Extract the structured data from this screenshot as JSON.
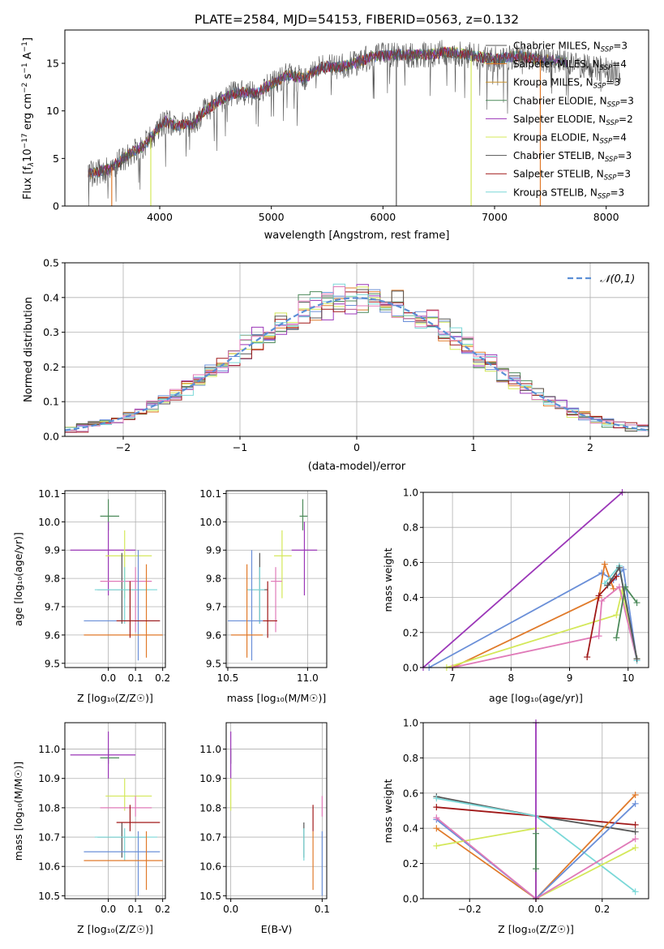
{
  "title": "PLATE=2584, MJD=54153, FIBERID=0563, z=0.132",
  "colors": {
    "chabrier_miles": "#6a8fd8",
    "salpeter_miles": "#e07a2a",
    "kroupa_miles": "#c8902a",
    "chabrier_elodie": "#4c8a5a",
    "salpeter_elodie": "#9b36b8",
    "kroupa_elodie": "#d4e85a",
    "chabrier_stelib": "#555555",
    "salpeter_stelib": "#a01818",
    "kroupa_stelib": "#7ad8d8",
    "pink": "#e07ab8",
    "normal": "#5b8fd6"
  },
  "chart_data": [
    {
      "id": "spectrum",
      "type": "line",
      "xlabel": "wavelength [Angstrom, rest frame]",
      "ylabel_parts": [
        "Flux [f",
        "λ",
        "10",
        "−17",
        " erg cm",
        "−2",
        " s",
        "−1",
        " A",
        "−1",
        "]"
      ],
      "xlim": [
        3150,
        8380
      ],
      "ylim": [
        0,
        18.5
      ],
      "xticks": [
        4000,
        5000,
        6000,
        7000,
        8000
      ],
      "yticks": [
        0,
        5,
        10,
        15
      ],
      "legend_position": "top-right",
      "legend": [
        {
          "name": "Chabrier MILES, N",
          "sub": "SSP",
          "tail": "=3",
          "color": "chabrier_stelib"
        },
        {
          "name": "Salpeter MILES, N",
          "sub": "SSP",
          "tail": "=4",
          "color": "salpeter_miles"
        },
        {
          "name": "Kroupa MILES, N",
          "sub": "SSP",
          "tail": "=3",
          "color": "kroupa_miles"
        },
        {
          "name": "Chabrier ELODIE, N",
          "sub": "SSP",
          "tail": "=3",
          "color": "chabrier_elodie"
        },
        {
          "name": "Salpeter ELODIE, N",
          "sub": "SSP",
          "tail": "=2",
          "color": "salpeter_elodie"
        },
        {
          "name": "Kroupa ELODIE, N",
          "sub": "SSP",
          "tail": "=4",
          "color": "kroupa_elodie"
        },
        {
          "name": "Chabrier STELIB, N",
          "sub": "SSP",
          "tail": "=3",
          "color": "chabrier_stelib"
        },
        {
          "name": "Salpeter STELIB, N",
          "sub": "SSP",
          "tail": "=3",
          "color": "salpeter_stelib"
        },
        {
          "name": "Kroupa STELIB, N",
          "sub": "SSP",
          "tail": "=3",
          "color": "kroupa_stelib"
        }
      ],
      "continuum": [
        [
          3400,
          3.4
        ],
        [
          3550,
          3.9
        ],
        [
          3700,
          5.2
        ],
        [
          3850,
          6.3
        ],
        [
          3950,
          7.6
        ],
        [
          4050,
          8.9
        ],
        [
          4150,
          8.4
        ],
        [
          4300,
          8.6
        ],
        [
          4400,
          10.0
        ],
        [
          4550,
          11.2
        ],
        [
          4700,
          12.0
        ],
        [
          4850,
          11.8
        ],
        [
          5000,
          12.8
        ],
        [
          5150,
          13.8
        ],
        [
          5300,
          13.4
        ],
        [
          5450,
          14.6
        ],
        [
          5600,
          14.6
        ],
        [
          5750,
          15.0
        ],
        [
          5900,
          15.7
        ],
        [
          6050,
          15.9
        ],
        [
          6200,
          15.9
        ],
        [
          6400,
          15.9
        ],
        [
          6600,
          16.2
        ],
        [
          6800,
          15.8
        ],
        [
          7000,
          15.4
        ],
        [
          7200,
          15.8
        ],
        [
          7400,
          15.4
        ],
        [
          7600,
          15.2
        ],
        [
          7800,
          14.7
        ],
        [
          8000,
          14.3
        ],
        [
          8130,
          14.0
        ]
      ],
      "drops": [
        {
          "x": 3570,
          "color": "salpeter_miles"
        },
        {
          "x": 3920,
          "color": "kroupa_elodie"
        },
        {
          "x": 6790,
          "color": "kroupa_elodie"
        },
        {
          "x": 7410,
          "color": "salpeter_miles"
        },
        {
          "x": 6120,
          "color": "chabrier_stelib"
        }
      ]
    },
    {
      "id": "residuals",
      "type": "histogram",
      "xlabel": "(data-model)/error",
      "ylabel": "Normed distribution",
      "xlim": [
        -2.5,
        2.5
      ],
      "ylim": [
        0,
        0.5
      ],
      "xticks": [
        -2,
        -1,
        0,
        1,
        2
      ],
      "yticks": [
        0.0,
        0.1,
        0.2,
        0.3,
        0.4,
        0.5
      ],
      "bin_width": 0.1,
      "grid": true,
      "legend_position": "top-right",
      "legend": [
        {
          "name": "𝒩(0,1)",
          "color": "normal",
          "style": "dashed"
        }
      ],
      "series": [
        {
          "color": "chabrier_miles",
          "seed": 1
        },
        {
          "color": "salpeter_miles",
          "seed": 2
        },
        {
          "color": "chabrier_elodie",
          "seed": 3
        },
        {
          "color": "salpeter_elodie",
          "seed": 4
        },
        {
          "color": "kroupa_elodie",
          "seed": 5
        },
        {
          "color": "chabrier_stelib",
          "seed": 6
        },
        {
          "color": "salpeter_stelib",
          "seed": 7
        },
        {
          "color": "kroupa_stelib",
          "seed": 8
        },
        {
          "color": "pink",
          "seed": 9
        }
      ]
    },
    {
      "id": "age_vs_z",
      "type": "errorbar",
      "xlabel": "Z [log10(Z/Z☉)]",
      "ylabel": "age  [log10(age/yr)]",
      "xlim": [
        -0.16,
        0.21
      ],
      "ylim": [
        9.485,
        10.11
      ],
      "xticks": [
        0.0,
        0.1,
        0.2
      ],
      "yticks": [
        9.5,
        9.6,
        9.7,
        9.8,
        9.9,
        10.0,
        10.1
      ],
      "points": [
        {
          "x": 0.0,
          "y": 10.02,
          "xerr": [
            0.0,
            0.0
          ],
          "yerr": [
            0.0,
            0.0
          ],
          "color": "chabrier_elodie",
          "xl": 0.0,
          "xr": 0.0
        },
        {
          "x": 0.0,
          "y": 9.9,
          "xl": -0.14,
          "xr": 0.1,
          "yl": 9.74,
          "yh": 10.0,
          "color": "salpeter_elodie"
        },
        {
          "x": 0.06,
          "y": 9.88,
          "xl": -0.01,
          "xr": 0.16,
          "yl": 9.73,
          "yh": 9.97,
          "color": "kroupa_elodie"
        }
      ]
    }
  ]
}
